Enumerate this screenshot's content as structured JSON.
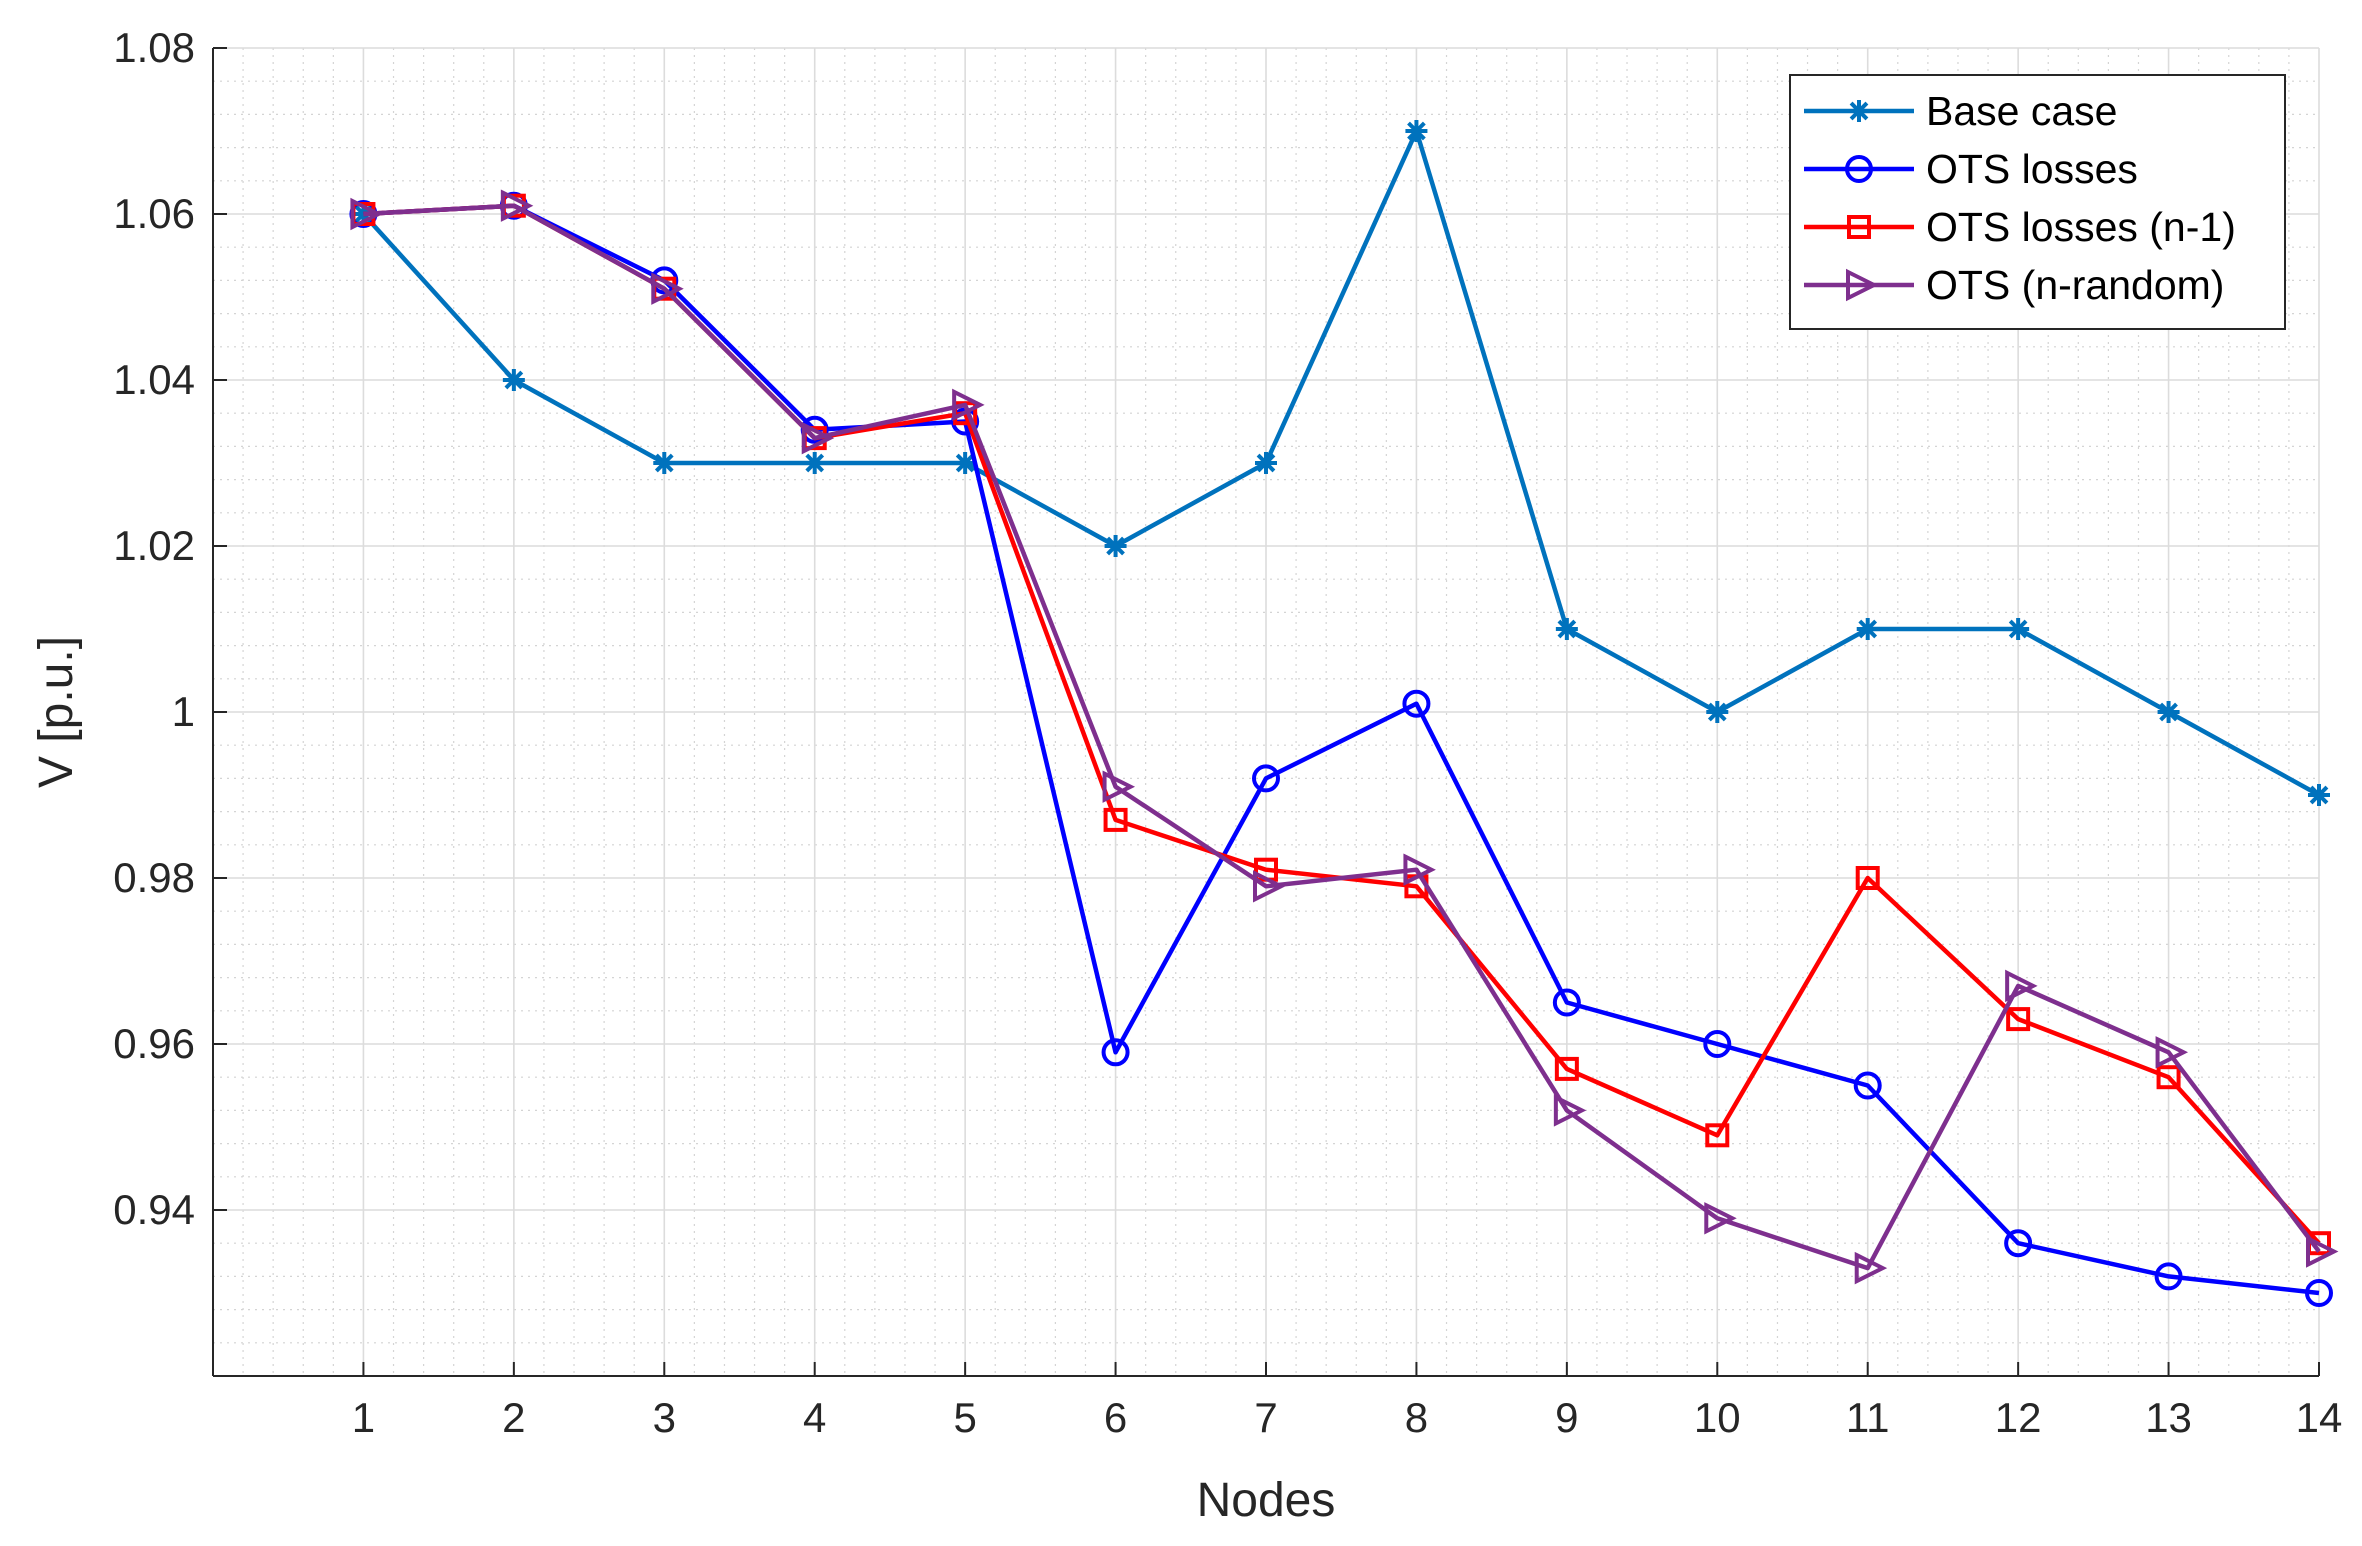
{
  "chart_data": {
    "type": "line",
    "title": "",
    "xlabel": "Nodes",
    "ylabel": "V [p.u.]",
    "x": [
      1,
      2,
      3,
      4,
      5,
      6,
      7,
      8,
      9,
      10,
      11,
      12,
      13,
      14
    ],
    "x_tick_labels": [
      "1",
      "2",
      "3",
      "4",
      "5",
      "6",
      "7",
      "8",
      "9",
      "10",
      "11",
      "12",
      "13",
      "14"
    ],
    "xlim": [
      0,
      14
    ],
    "ylim": [
      0.92,
      1.08
    ],
    "y_ticks": [
      0.94,
      0.96,
      0.98,
      1.0,
      1.02,
      1.04,
      1.06,
      1.08
    ],
    "y_tick_labels": [
      "0.94",
      "0.96",
      "0.98",
      "1",
      "1.02",
      "1.04",
      "1.06",
      "1.08"
    ],
    "grid": true,
    "minor_grid": true,
    "legend_position": "top-right",
    "series": [
      {
        "name": "Base case",
        "color": "#0072BD",
        "marker": "asterisk",
        "values": [
          1.06,
          1.04,
          1.03,
          1.03,
          1.03,
          1.02,
          1.03,
          1.07,
          1.01,
          1.0,
          1.01,
          1.01,
          1.0,
          0.99
        ]
      },
      {
        "name": "OTS losses",
        "color": "#0000FF",
        "marker": "circle",
        "values": [
          1.06,
          1.061,
          1.052,
          1.034,
          1.035,
          0.959,
          0.992,
          1.001,
          0.965,
          0.96,
          0.955,
          0.936,
          0.932,
          0.93
        ]
      },
      {
        "name": "OTS losses (n-1)",
        "color": "#FF0000",
        "marker": "square",
        "values": [
          1.06,
          1.061,
          1.051,
          1.033,
          1.036,
          0.987,
          0.981,
          0.979,
          0.957,
          0.949,
          0.98,
          0.963,
          0.956,
          0.936
        ]
      },
      {
        "name": "OTS (n-random)",
        "color": "#7E2F8E",
        "marker": "triangle-right",
        "values": [
          1.06,
          1.061,
          1.051,
          1.033,
          1.037,
          0.991,
          0.979,
          0.981,
          0.952,
          0.939,
          0.933,
          0.967,
          0.959,
          0.935
        ]
      }
    ]
  }
}
